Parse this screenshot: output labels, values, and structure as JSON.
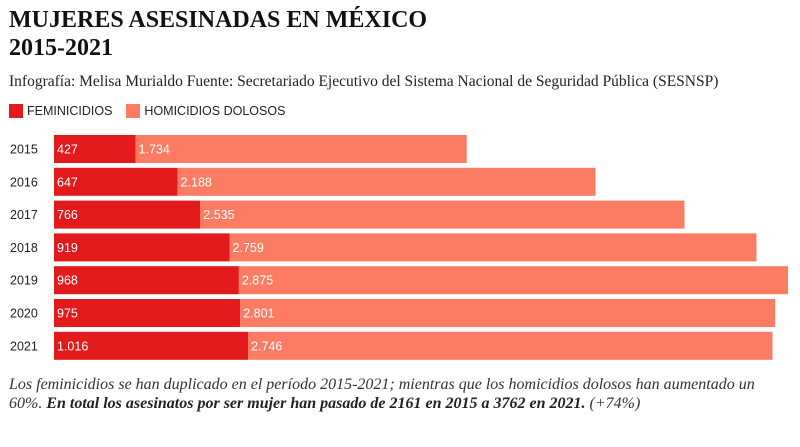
{
  "header": {
    "title_line1": "MUJERES ASESINADAS EN MÉXICO",
    "title_line2": "2015-2021",
    "subtitle": "Infografía: Melisa Murialdo Fuente: Secretariado Ejecutivo del Sistema Nacional de Seguridad Pública (SESNSP)"
  },
  "legend": [
    {
      "label": "FEMINICIDIOS",
      "color": "#e31a1c"
    },
    {
      "label": "HOMICIDIOS DOLOSOS",
      "color": "#fb7b63"
    }
  ],
  "footnote": {
    "plain": "Los feminicidios se han duplicado en el período 2015-2021; mientras que los homicidios dolosos han aumentado un 60%. ",
    "bold": "En total los asesinatos por ser mujer han pasado de 2161 en 2015 a 3762 en 2021.",
    "tail": " (+74%)"
  },
  "chart_data": {
    "type": "bar",
    "orientation": "horizontal",
    "stacked": true,
    "categories": [
      "2015",
      "2016",
      "2017",
      "2018",
      "2019",
      "2020",
      "2021"
    ],
    "series": [
      {
        "name": "FEMINICIDIOS",
        "color": "#e31a1c",
        "values": [
          427,
          647,
          766,
          919,
          968,
          975,
          1016
        ],
        "labels": [
          "427",
          "647",
          "766",
          "919",
          "968",
          "975",
          "1.016"
        ]
      },
      {
        "name": "HOMICIDIOS DOLOSOS",
        "color": "#fb7b63",
        "values": [
          1734,
          2188,
          2535,
          2759,
          2875,
          2801,
          2746
        ],
        "labels": [
          "1.734",
          "2.188",
          "2.535",
          "2.759",
          "2.875",
          "2.801",
          "2.746"
        ]
      }
    ],
    "legend_position": "top-left",
    "grid": false
  }
}
